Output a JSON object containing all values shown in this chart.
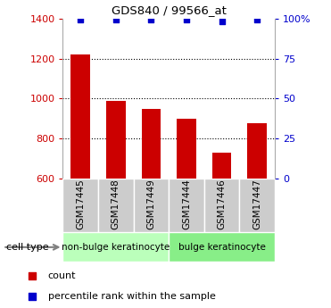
{
  "title": "GDS840 / 99566_at",
  "samples": [
    "GSM17445",
    "GSM17448",
    "GSM17449",
    "GSM17444",
    "GSM17446",
    "GSM17447"
  ],
  "counts": [
    1220,
    988,
    948,
    900,
    730,
    875
  ],
  "percentiles": [
    99,
    99,
    99,
    99,
    98,
    99
  ],
  "ylim_left": [
    600,
    1400
  ],
  "ylim_right": [
    0,
    100
  ],
  "yticks_left": [
    600,
    800,
    1000,
    1200,
    1400
  ],
  "yticks_right": [
    0,
    25,
    50,
    75,
    100
  ],
  "bar_color": "#cc0000",
  "dot_color": "#0000cc",
  "group1_label": "non-bulge keratinocyte",
  "group2_label": "bulge keratinocyte",
  "group1_color": "#bbffbb",
  "group2_color": "#88ee88",
  "group1_indices": [
    0,
    1,
    2
  ],
  "group2_indices": [
    3,
    4,
    5
  ],
  "legend_count_label": "count",
  "legend_percentile_label": "percentile rank within the sample",
  "cell_type_label": "cell type",
  "bar_bottom": 600,
  "tick_label_color_left": "#cc0000",
  "tick_label_color_right": "#0000cc",
  "sample_box_color": "#cccccc",
  "fig_width": 3.71,
  "fig_height": 3.45,
  "dpi": 100
}
